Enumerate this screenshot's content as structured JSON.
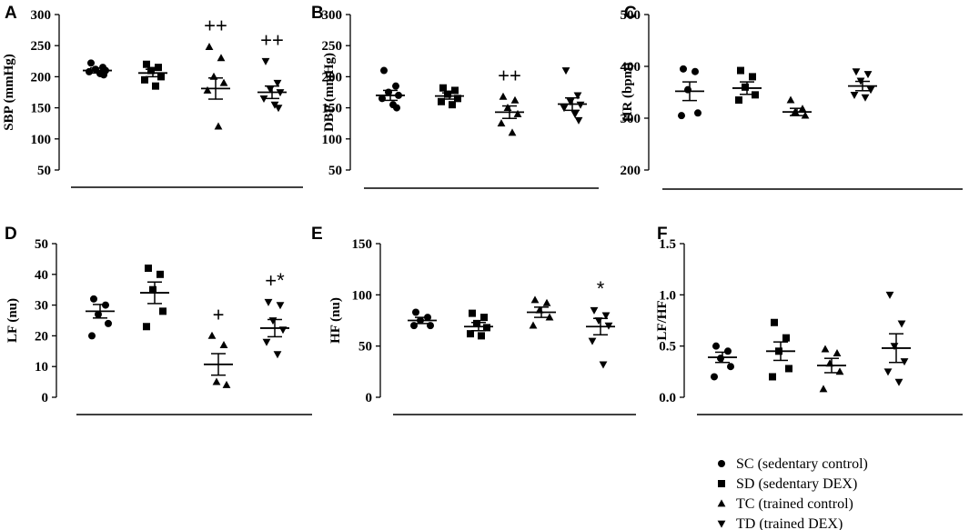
{
  "groups": [
    "SC",
    "SD",
    "TC",
    "TD"
  ],
  "markers": {
    "SC": "circle",
    "SD": "square",
    "TC": "triangle-up",
    "TD": "triangle-down"
  },
  "legend": {
    "entries": [
      {
        "group": "SC",
        "label": "SC (sedentary  control)"
      },
      {
        "group": "SD",
        "label": "SD (sedentary DEX)"
      },
      {
        "group": "TC",
        "label": "TC (trained control)"
      },
      {
        "group": "TD",
        "label": "TD (trained DEX)"
      }
    ],
    "placement": "bottom-right"
  },
  "chart_data": [
    {
      "panel": "A",
      "type": "scatter",
      "ylabel": "SBP (mmHg)",
      "ylim": [
        50,
        300
      ],
      "yticks": [
        50,
        100,
        150,
        200,
        250,
        300
      ],
      "series": [
        {
          "group": "SC",
          "values": [
            222,
            215,
            212,
            210,
            208,
            205,
            203
          ],
          "mean": 210,
          "sem": 4
        },
        {
          "group": "SD",
          "values": [
            220,
            215,
            210,
            200,
            195,
            185
          ],
          "mean": 206,
          "sem": 6
        },
        {
          "group": "TC",
          "values": [
            248,
            230,
            200,
            190,
            178,
            120
          ],
          "mean": 181,
          "sem": 17
        },
        {
          "group": "TD",
          "values": [
            225,
            190,
            180,
            175,
            165,
            155,
            150
          ],
          "mean": 175,
          "sem": 10
        }
      ],
      "annotations": [
        {
          "group": "TC",
          "text": "++"
        },
        {
          "group": "TD",
          "text": "++"
        }
      ]
    },
    {
      "panel": "B",
      "type": "scatter",
      "ylabel": "DBP (mmHg)",
      "ylim": [
        50,
        300
      ],
      "yticks": [
        50,
        100,
        150,
        200,
        250,
        300
      ],
      "series": [
        {
          "group": "SC",
          "values": [
            210,
            185,
            175,
            170,
            165,
            155,
            150
          ],
          "mean": 170,
          "sem": 8
        },
        {
          "group": "SD",
          "values": [
            182,
            178,
            172,
            165,
            160,
            155
          ],
          "mean": 169,
          "sem": 5
        },
        {
          "group": "TC",
          "values": [
            168,
            162,
            150,
            140,
            125,
            110
          ],
          "mean": 143,
          "sem": 10
        },
        {
          "group": "TD",
          "values": [
            210,
            170,
            160,
            155,
            150,
            140,
            130
          ],
          "mean": 156,
          "sem": 10
        }
      ],
      "annotations": [
        {
          "group": "TC",
          "text": "++"
        }
      ]
    },
    {
      "panel": "C",
      "type": "scatter",
      "ylabel": "HR (bpm)",
      "ylim": [
        200,
        500
      ],
      "yticks": [
        200,
        300,
        400,
        500
      ],
      "series": [
        {
          "group": "SC",
          "values": [
            395,
            390,
            355,
            310,
            305
          ],
          "mean": 352,
          "sem": 18
        },
        {
          "group": "SD",
          "values": [
            392,
            380,
            360,
            345,
            335
          ],
          "mean": 358,
          "sem": 12
        },
        {
          "group": "TC",
          "values": [
            335,
            318,
            312,
            305
          ],
          "mean": 312,
          "sem": 7
        },
        {
          "group": "TD",
          "values": [
            390,
            385,
            372,
            355,
            345,
            340
          ],
          "mean": 362,
          "sem": 9
        }
      ],
      "annotations": []
    },
    {
      "panel": "D",
      "type": "scatter",
      "ylabel": "LF (nu)",
      "ylim": [
        0,
        50
      ],
      "yticks": [
        0,
        10,
        20,
        30,
        40,
        50
      ],
      "series": [
        {
          "group": "SC",
          "values": [
            32,
            30,
            27,
            24,
            20
          ],
          "mean": 28,
          "sem": 2.2
        },
        {
          "group": "SD",
          "values": [
            42,
            40,
            35,
            28,
            23
          ],
          "mean": 34,
          "sem": 3.5
        },
        {
          "group": "TC",
          "values": [
            20,
            17,
            5,
            4
          ],
          "mean": 10.7,
          "sem": 3.5
        },
        {
          "group": "TD",
          "values": [
            31,
            30,
            25,
            22,
            18,
            14
          ],
          "mean": 22.5,
          "sem": 2.8
        }
      ],
      "annotations": [
        {
          "group": "TC",
          "text": "+"
        },
        {
          "group": "TD",
          "text": "+*"
        }
      ]
    },
    {
      "panel": "E",
      "type": "scatter",
      "ylabel": "HF (nu)",
      "ylim": [
        0,
        150
      ],
      "yticks": [
        0,
        50,
        100,
        150
      ],
      "series": [
        {
          "group": "SC",
          "values": [
            83,
            78,
            75,
            70,
            70
          ],
          "mean": 75,
          "sem": 3
        },
        {
          "group": "SD",
          "values": [
            82,
            78,
            72,
            68,
            62,
            60
          ],
          "mean": 69,
          "sem": 4
        },
        {
          "group": "TC",
          "values": [
            95,
            92,
            85,
            78,
            70
          ],
          "mean": 83,
          "sem": 5
        },
        {
          "group": "TD",
          "values": [
            85,
            80,
            75,
            70,
            55,
            32
          ],
          "mean": 69,
          "sem": 8
        }
      ],
      "annotations": [
        {
          "group": "TD",
          "text": "*"
        }
      ]
    },
    {
      "panel": "F",
      "type": "scatter",
      "ylabel": "LF/HF",
      "ylim": [
        0,
        1.5
      ],
      "yticks": [
        0.0,
        0.5,
        1.0,
        1.5
      ],
      "ytick_labels": [
        "0.0",
        "0.5",
        "1.0",
        "1.5"
      ],
      "series": [
        {
          "group": "SC",
          "values": [
            0.5,
            0.45,
            0.38,
            0.3,
            0.2
          ],
          "mean": 0.39,
          "sem": 0.05
        },
        {
          "group": "SD",
          "values": [
            0.73,
            0.58,
            0.45,
            0.28,
            0.2
          ],
          "mean": 0.45,
          "sem": 0.09
        },
        {
          "group": "TC",
          "values": [
            0.47,
            0.43,
            0.33,
            0.25,
            0.08
          ],
          "mean": 0.31,
          "sem": 0.07
        },
        {
          "group": "TD",
          "values": [
            1.0,
            0.72,
            0.5,
            0.35,
            0.25,
            0.15
          ],
          "mean": 0.48,
          "sem": 0.14
        }
      ],
      "annotations": []
    }
  ]
}
